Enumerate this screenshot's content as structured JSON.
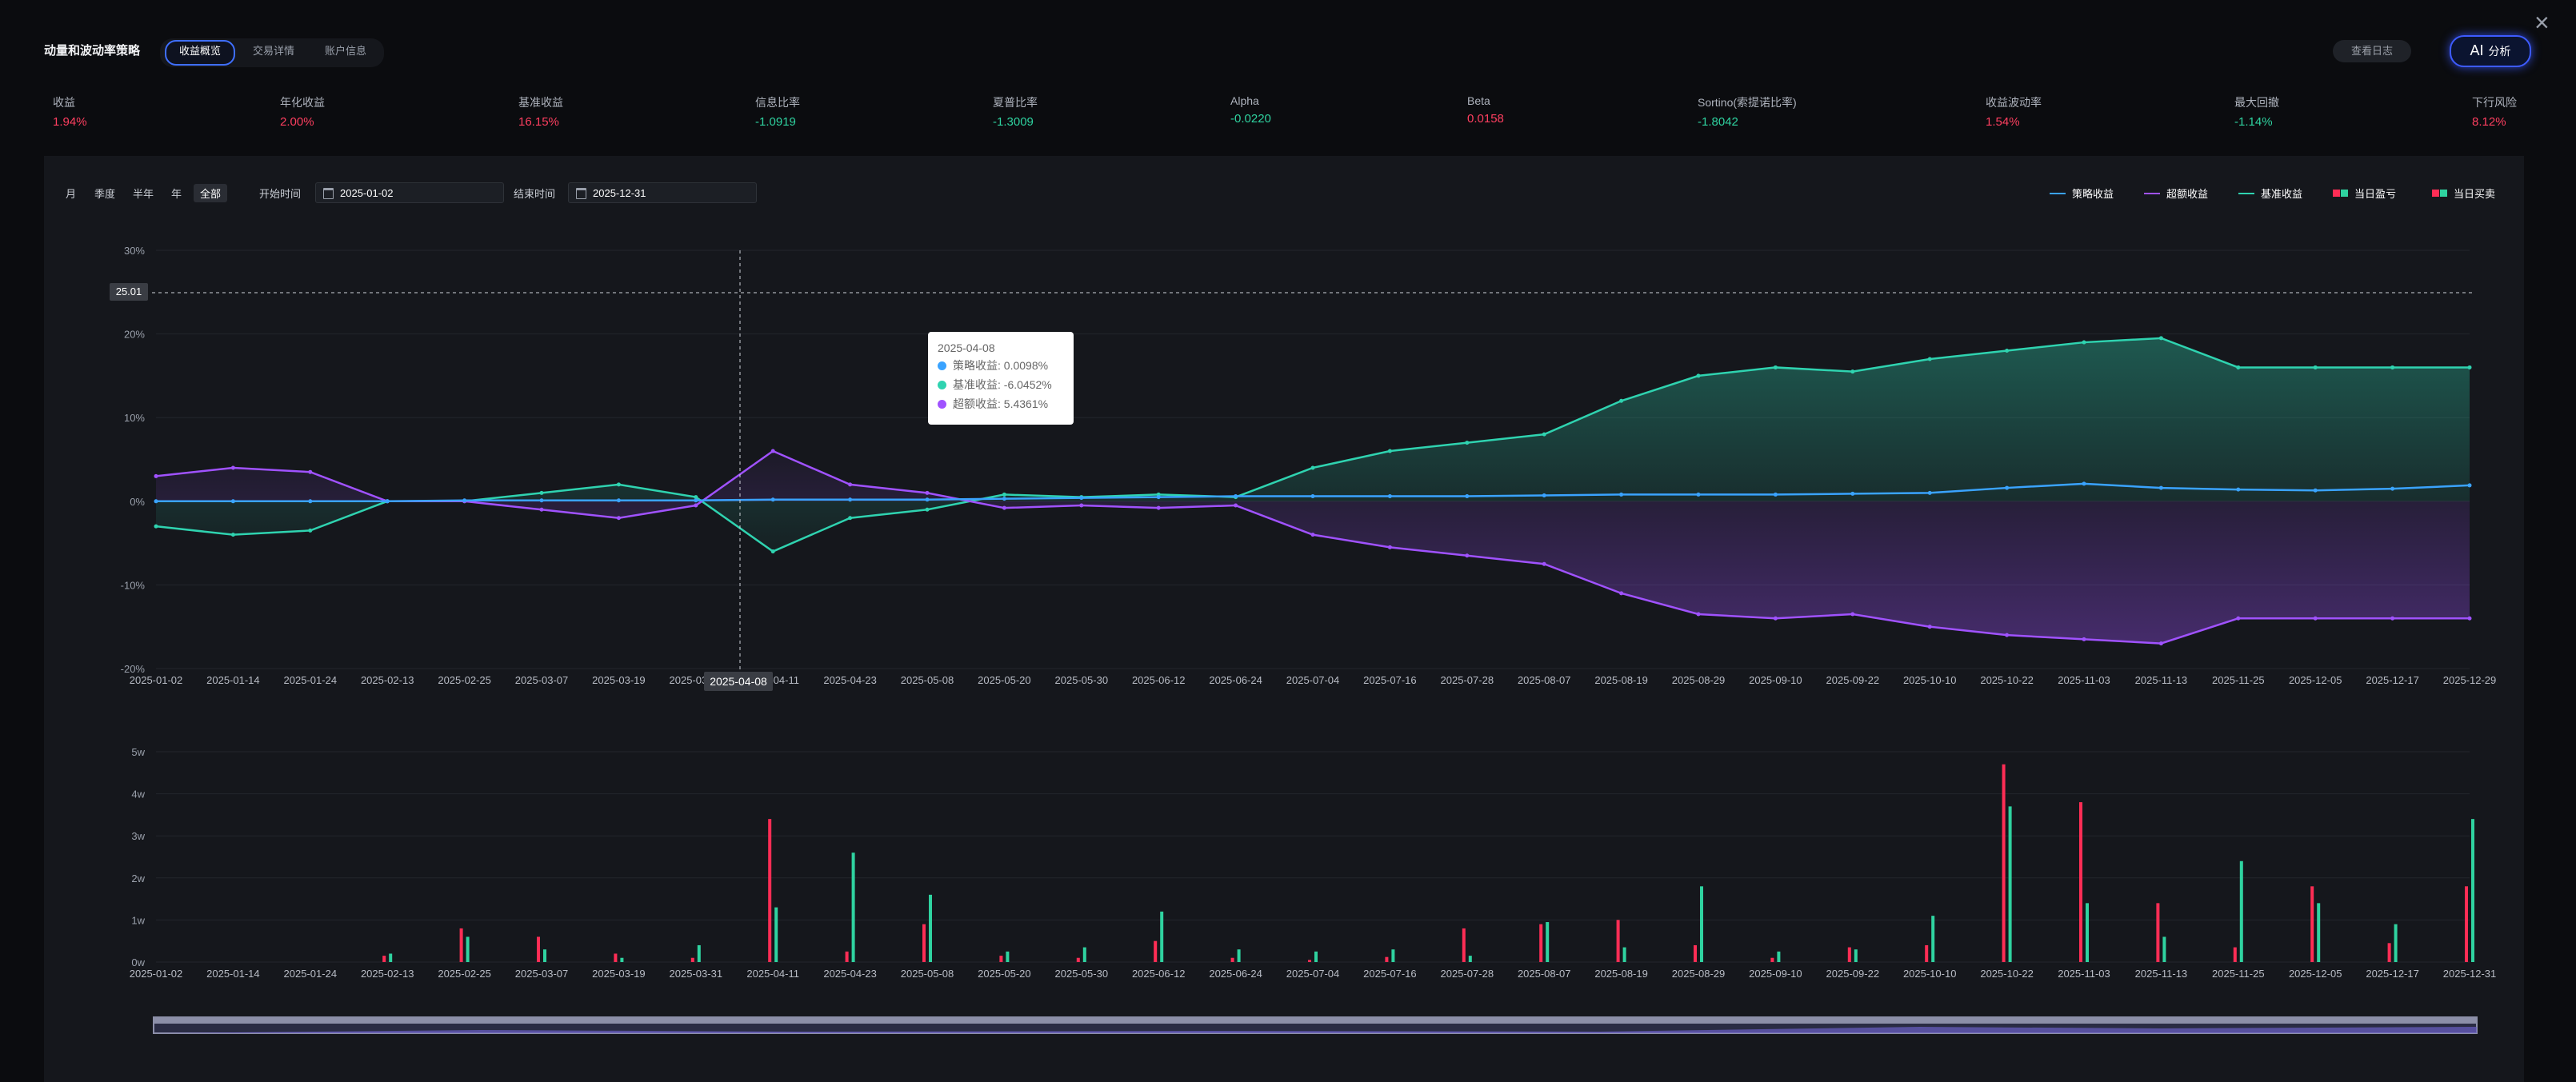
{
  "header": {
    "title": "动量和波动率策略",
    "tabs": [
      "收益概览",
      "交易详情",
      "账户信息"
    ],
    "active_tab": 0,
    "log_button": "查看日志",
    "ai_button_icon": "AI",
    "ai_button_label": "分析",
    "close_icon": "close-icon"
  },
  "stats": [
    {
      "label": "收益",
      "value": "1.94%",
      "color": "red"
    },
    {
      "label": "年化收益",
      "value": "2.00%",
      "color": "red"
    },
    {
      "label": "基准收益",
      "value": "16.15%",
      "color": "red"
    },
    {
      "label": "信息比率",
      "value": "-1.0919",
      "color": "green"
    },
    {
      "label": "夏普比率",
      "value": "-1.3009",
      "color": "green"
    },
    {
      "label": "Alpha",
      "value": "-0.0220",
      "color": "green"
    },
    {
      "label": "Beta",
      "value": "0.0158",
      "color": "red"
    },
    {
      "label": "Sortino(索提诺比率)",
      "value": "-1.8042",
      "color": "green"
    },
    {
      "label": "收益波动率",
      "value": "1.54%",
      "color": "red"
    },
    {
      "label": "最大回撤",
      "value": "-1.14%",
      "color": "green"
    },
    {
      "label": "下行风险",
      "value": "8.12%",
      "color": "red"
    }
  ],
  "controls": {
    "periods": [
      "月",
      "季度",
      "半年",
      "年",
      "全部"
    ],
    "active_period": 4,
    "start_label": "开始时间",
    "start_value": "2025-01-02",
    "end_label": "结束时间",
    "end_value": "2025-12-31"
  },
  "legend": [
    {
      "label": "策略收益",
      "kind": "line",
      "color": "#3aa3ff"
    },
    {
      "label": "超额收益",
      "kind": "line",
      "color": "#a052ff"
    },
    {
      "label": "基准收益",
      "kind": "line",
      "color": "#2fd3b0"
    },
    {
      "label": "当日盈亏",
      "kind": "bar",
      "color": "#ff2d55",
      "color2": "#2fd3a0"
    },
    {
      "label": "当日买卖",
      "kind": "bar",
      "color": "#ff2d55",
      "color2": "#2fd3a0"
    }
  ],
  "tooltip": {
    "date": "2025-04-08",
    "rows": [
      {
        "text": "策略收益: 0.0098%",
        "color": "#3aa3ff"
      },
      {
        "text": "基准收益: -6.0452%",
        "color": "#2fd3b0"
      },
      {
        "text": "超额收益: 5.4361%",
        "color": "#a052ff"
      }
    ]
  },
  "crosshair": {
    "x_label": "2025-04-08",
    "y_label": "25.01"
  },
  "chart_data": [
    {
      "type": "area",
      "ylim": [
        -20,
        30
      ],
      "y_ticks": [
        "30%",
        "20%",
        "10%",
        "0%",
        "-10%",
        "-20%"
      ],
      "x_ticks": [
        "2025-01-02",
        "2025-01-14",
        "2025-01-24",
        "2025-02-13",
        "2025-02-25",
        "2025-03-07",
        "2025-03-19",
        "2025-03-31",
        "2025-04-11",
        "2025-04-23",
        "2025-05-08",
        "2025-05-20",
        "2025-05-30",
        "2025-06-12",
        "2025-06-24",
        "2025-07-04",
        "2025-07-16",
        "2025-07-28",
        "2025-08-07",
        "2025-08-19",
        "2025-08-29",
        "2025-09-10",
        "2025-09-22",
        "2025-10-10",
        "2025-10-22",
        "2025-11-03",
        "2025-11-13",
        "2025-11-25",
        "2025-12-05",
        "2025-12-17",
        "2025-12-29"
      ],
      "series": [
        {
          "name": "策略收益",
          "color": "#3aa3ff",
          "values": [
            0,
            0,
            0,
            0,
            0.1,
            0.1,
            0.1,
            0.1,
            0.2,
            0.2,
            0.2,
            0.3,
            0.4,
            0.5,
            0.6,
            0.6,
            0.6,
            0.6,
            0.7,
            0.8,
            0.8,
            0.8,
            0.9,
            1.0,
            1.6,
            2.1,
            1.6,
            1.4,
            1.3,
            1.5,
            1.9
          ]
        },
        {
          "name": "基准收益",
          "color": "#2fd3b0",
          "values": [
            -3,
            -4,
            -3.5,
            0,
            0,
            1,
            2,
            0.5,
            -6,
            -2,
            -1,
            0.8,
            0.5,
            0.8,
            0.5,
            4,
            6,
            7,
            8,
            12,
            15,
            16,
            15.5,
            17,
            18,
            19,
            19.5,
            16,
            16,
            16,
            16
          ]
        },
        {
          "name": "超额收益",
          "color": "#a052ff",
          "values": [
            3,
            4,
            3.5,
            0,
            0,
            -1,
            -2,
            -0.5,
            6,
            2,
            1,
            -0.8,
            -0.5,
            -0.8,
            -0.5,
            -4,
            -5.5,
            -6.5,
            -7.5,
            -11,
            -13.5,
            -14,
            -13.5,
            -15,
            -16,
            -16.5,
            -17,
            -14,
            -14,
            -14,
            -14
          ]
        }
      ]
    },
    {
      "type": "bar",
      "ylim": [
        0,
        50000
      ],
      "y_ticks": [
        "5w",
        "4w",
        "3w",
        "2w",
        "1w",
        "0w"
      ],
      "x_ticks": [
        "2025-01-02",
        "2025-01-14",
        "2025-01-24",
        "2025-02-13",
        "2025-02-25",
        "2025-03-07",
        "2025-03-19",
        "2025-03-31",
        "2025-04-11",
        "2025-04-23",
        "2025-05-08",
        "2025-05-20",
        "2025-05-30",
        "2025-06-12",
        "2025-06-24",
        "2025-07-04",
        "2025-07-16",
        "2025-07-28",
        "2025-08-07",
        "2025-08-19",
        "2025-08-29",
        "2025-09-10",
        "2025-09-22",
        "2025-10-10",
        "2025-10-22",
        "2025-11-03",
        "2025-11-13",
        "2025-11-25",
        "2025-12-05",
        "2025-12-17",
        "2025-12-31"
      ],
      "series": [
        {
          "name": "当日盈亏",
          "color": "#ff2d55",
          "values": [
            0,
            0,
            0,
            1500,
            8000,
            6000,
            2000,
            1000,
            34000,
            2500,
            9000,
            1500,
            1000,
            5000,
            1000,
            500,
            1200,
            8000,
            9000,
            10000,
            4000,
            1000,
            3500,
            4000,
            47000,
            38000,
            14000,
            3500,
            18000,
            4500,
            18000
          ]
        },
        {
          "name": "当日买卖",
          "color": "#2fd3a0",
          "values": [
            0,
            0,
            0,
            2000,
            6000,
            3000,
            1000,
            4000,
            13000,
            26000,
            16000,
            2500,
            3500,
            12000,
            3000,
            2500,
            3000,
            1500,
            9500,
            3500,
            18000,
            2500,
            3000,
            11000,
            37000,
            14000,
            6000,
            24000,
            14000,
            9000,
            34000
          ]
        }
      ]
    }
  ]
}
